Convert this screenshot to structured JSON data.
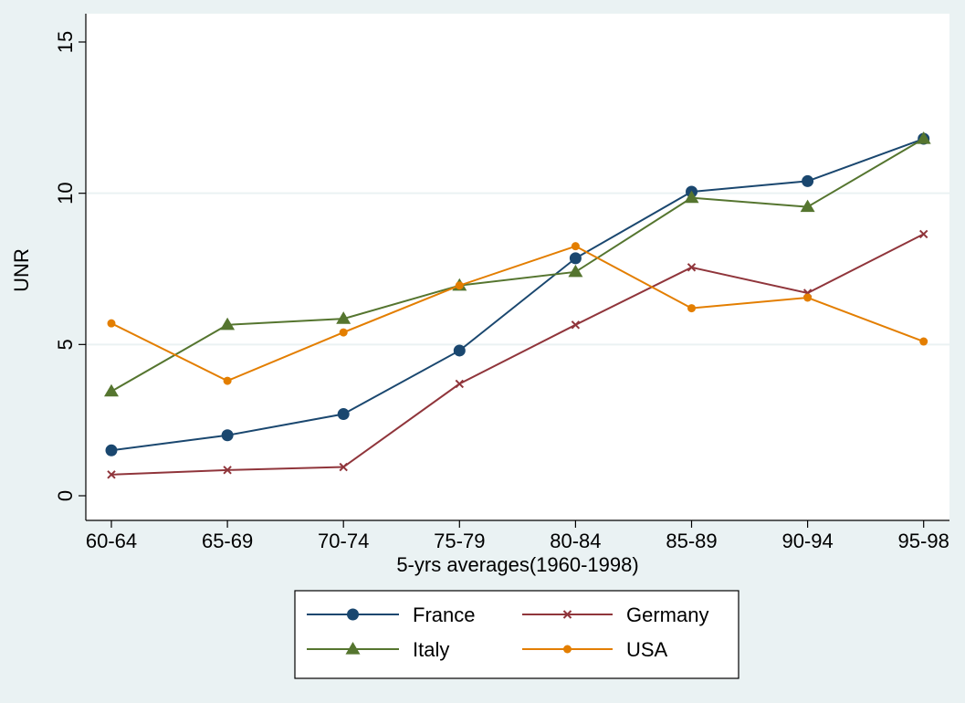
{
  "chart_data": {
    "type": "line",
    "categories": [
      "60-64",
      "65-69",
      "70-74",
      "75-79",
      "80-84",
      "85-89",
      "90-94",
      "95-98"
    ],
    "xlabel": "5-yrs averages(1960-1998)",
    "ylabel": "UNR",
    "ylim": [
      0,
      15
    ],
    "yticks": [
      "0",
      "5",
      "10",
      "15"
    ],
    "grid": true,
    "legend_position": "bottom",
    "series": [
      {
        "name": "France",
        "marker": "circle",
        "color": "#1a476f",
        "values": [
          1.5,
          2.0,
          2.7,
          4.8,
          7.85,
          10.05,
          10.4,
          11.8
        ]
      },
      {
        "name": "Germany",
        "marker": "x",
        "color": "#90353b",
        "values": [
          0.7,
          0.85,
          0.95,
          3.7,
          5.65,
          7.55,
          6.7,
          8.65
        ]
      },
      {
        "name": "Italy",
        "marker": "triangle",
        "color": "#55752f",
        "values": [
          3.45,
          5.65,
          5.85,
          6.95,
          7.4,
          9.85,
          9.55,
          11.8
        ]
      },
      {
        "name": "USA",
        "marker": "circle-small",
        "color": "#e37e00",
        "values": [
          5.7,
          3.8,
          5.4,
          6.95,
          8.25,
          6.2,
          6.55,
          5.1
        ]
      }
    ]
  }
}
